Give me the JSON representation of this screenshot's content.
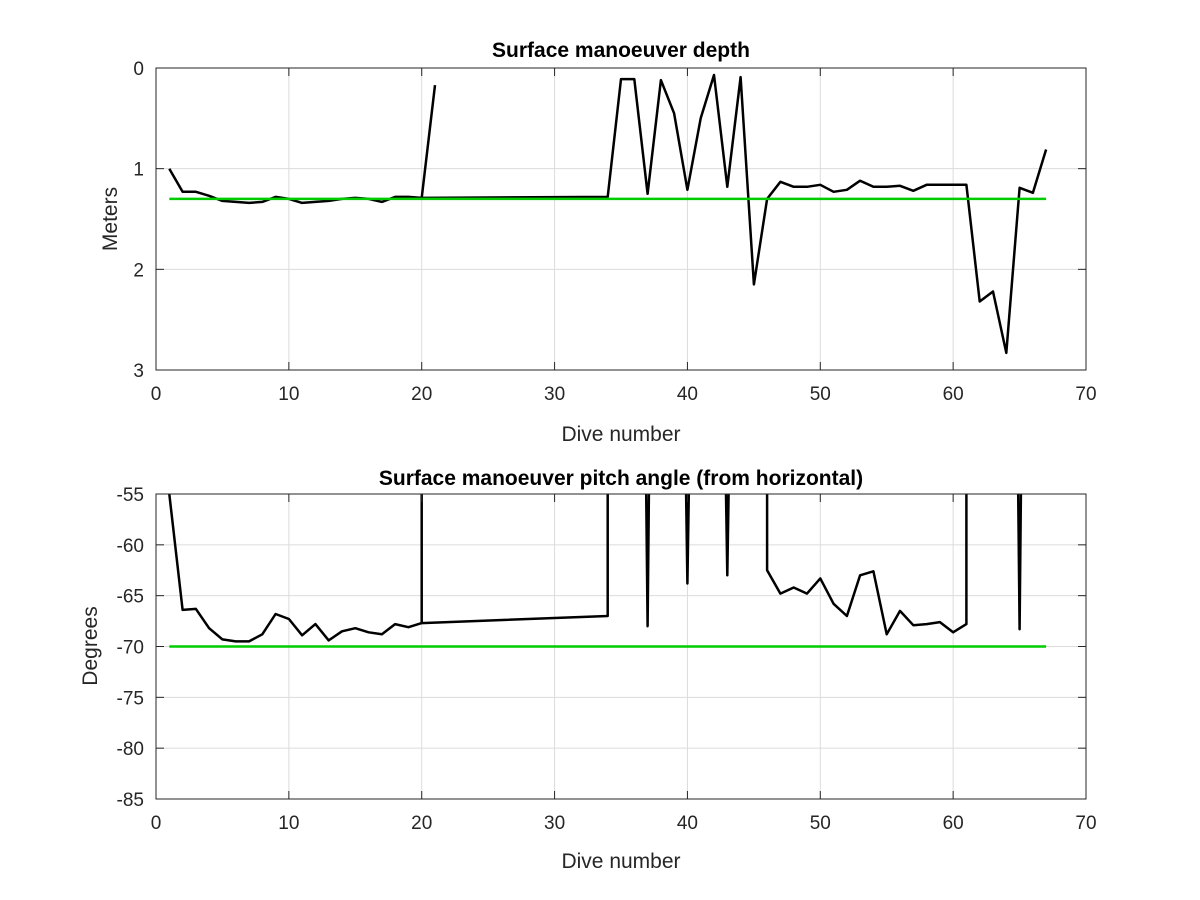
{
  "chart_data": [
    {
      "type": "line",
      "title": "Surface manoeuver depth",
      "xlabel": "Dive number",
      "ylabel": "Meters",
      "xlim": [
        0,
        70
      ],
      "ylim": [
        0,
        3
      ],
      "y_reversed": true,
      "grid": true,
      "xticks": [
        "0",
        "10",
        "20",
        "30",
        "40",
        "50",
        "60",
        "70"
      ],
      "yticks": [
        "0",
        "1",
        "2",
        "3"
      ],
      "series": [
        {
          "color": "#000000",
          "points": [
            [
              1,
              1.0
            ],
            [
              2,
              1.23
            ],
            [
              3,
              1.23
            ],
            [
              4,
              1.27
            ],
            [
              5,
              1.32
            ],
            [
              6,
              1.33
            ],
            [
              7,
              1.34
            ],
            [
              8,
              1.33
            ],
            [
              9,
              1.28
            ],
            [
              10,
              1.3
            ],
            [
              11,
              1.34
            ],
            [
              12,
              1.33
            ],
            [
              13,
              1.32
            ],
            [
              14,
              1.3
            ],
            [
              15,
              1.29
            ],
            [
              16,
              1.3
            ],
            [
              17,
              1.33
            ],
            [
              18,
              1.28
            ],
            [
              19,
              1.28
            ],
            [
              20,
              1.29
            ],
            [
              21,
              0.17
            ],
            null,
            [
              20,
              1.29
            ],
            [
              34,
              1.28
            ],
            [
              35,
              0.11
            ],
            [
              36,
              0.11
            ],
            [
              37,
              1.25
            ],
            [
              38,
              0.12
            ],
            [
              39,
              0.45
            ],
            [
              40,
              1.21
            ],
            [
              41,
              0.5
            ],
            [
              42,
              0.07
            ],
            [
              43,
              1.18
            ],
            [
              44,
              0.09
            ],
            [
              45,
              2.15
            ],
            [
              46,
              1.3
            ],
            [
              47,
              1.13
            ],
            [
              48,
              1.18
            ],
            [
              49,
              1.18
            ],
            [
              50,
              1.16
            ],
            [
              51,
              1.23
            ],
            [
              52,
              1.21
            ],
            [
              53,
              1.12
            ],
            [
              54,
              1.18
            ],
            [
              55,
              1.18
            ],
            [
              56,
              1.17
            ],
            [
              57,
              1.22
            ],
            [
              58,
              1.16
            ],
            [
              59,
              1.16
            ],
            [
              60,
              1.16
            ],
            [
              61,
              1.16
            ],
            [
              62,
              2.32
            ],
            [
              63,
              2.22
            ],
            [
              64,
              2.83
            ],
            [
              65,
              1.19
            ],
            [
              66,
              1.24
            ],
            [
              67,
              0.81
            ]
          ]
        },
        {
          "color": "#00cc00",
          "points": [
            [
              1,
              1.3
            ],
            [
              67,
              1.3
            ]
          ]
        }
      ]
    },
    {
      "type": "line",
      "title": "Surface manoeuver pitch angle (from horizontal)",
      "xlabel": "Dive number",
      "ylabel": "Degrees",
      "xlim": [
        0,
        70
      ],
      "ylim": [
        -85,
        -55
      ],
      "y_reversed": false,
      "grid": true,
      "xticks": [
        "0",
        "10",
        "20",
        "30",
        "40",
        "50",
        "60",
        "70"
      ],
      "yticks": [
        "-55",
        "-60",
        "-65",
        "-70",
        "-75",
        "-80",
        "-85"
      ],
      "series": [
        {
          "color": "#000000",
          "points": [
            [
              1,
              -55
            ],
            [
              2,
              -66.4
            ],
            [
              3,
              -66.3
            ],
            [
              4,
              -68.2
            ],
            [
              5,
              -69.3
            ],
            [
              6,
              -69.5
            ],
            [
              7,
              -69.5
            ],
            [
              8,
              -68.8
            ],
            [
              9,
              -66.8
            ],
            [
              10,
              -67.3
            ],
            [
              11,
              -68.9
            ],
            [
              12,
              -67.8
            ],
            [
              13,
              -69.4
            ],
            [
              14,
              -68.5
            ],
            [
              15,
              -68.2
            ],
            [
              16,
              -68.6
            ],
            [
              17,
              -68.8
            ],
            [
              18,
              -67.8
            ],
            [
              19,
              -68.1
            ],
            [
              20,
              -67.7
            ],
            [
              20,
              -55
            ],
            null,
            [
              20,
              -67.7
            ],
            [
              34,
              -67.0
            ],
            [
              34,
              -55
            ],
            null,
            [
              36.9,
              -55
            ],
            [
              37,
              -68.0
            ],
            [
              37.1,
              -55
            ],
            null,
            [
              39.9,
              -55
            ],
            [
              40,
              -63.8
            ],
            [
              40.1,
              -55
            ],
            null,
            [
              42.9,
              -55
            ],
            [
              43,
              -63.0
            ],
            [
              43.1,
              -55
            ],
            null,
            [
              46,
              -55
            ],
            [
              46,
              -62.5
            ],
            [
              47,
              -64.8
            ],
            [
              48,
              -64.2
            ],
            [
              49,
              -64.8
            ],
            [
              50,
              -63.3
            ],
            [
              51,
              -65.8
            ],
            [
              52,
              -67.0
            ],
            [
              53,
              -63.0
            ],
            [
              54,
              -62.6
            ],
            [
              55,
              -68.8
            ],
            [
              56,
              -66.5
            ],
            [
              57,
              -67.9
            ],
            [
              58,
              -67.8
            ],
            [
              59,
              -67.6
            ],
            [
              60,
              -68.6
            ],
            [
              61,
              -67.8
            ],
            [
              61,
              -55
            ],
            null,
            [
              64.9,
              -55
            ],
            [
              65,
              -68.3
            ],
            [
              65.1,
              -55
            ]
          ]
        },
        {
          "color": "#00cc00",
          "points": [
            [
              1,
              -70
            ],
            [
              67,
              -70
            ]
          ]
        }
      ]
    }
  ]
}
